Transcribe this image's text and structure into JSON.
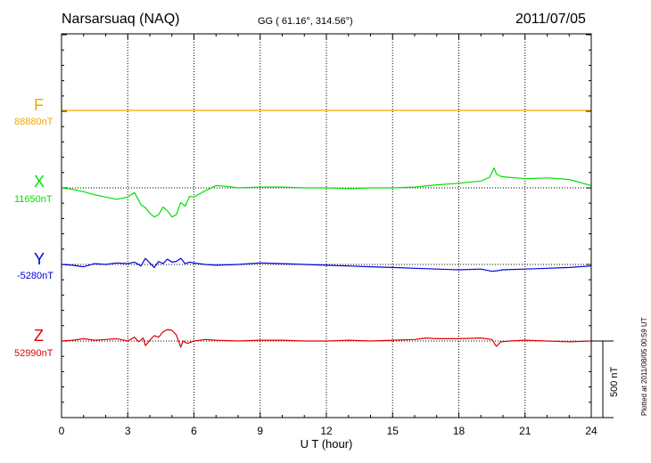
{
  "chart_data": {
    "type": "line",
    "title": "Narsarsuaq (NAQ)",
    "coordinates": "GG ( 61.16°, 314.56°)",
    "date": "2011/07/05",
    "xlabel": "U T (hour)",
    "xlim": [
      0,
      24
    ],
    "xticks": [
      0,
      3,
      6,
      9,
      12,
      15,
      18,
      21,
      24
    ],
    "grid": true,
    "scale_bar": {
      "label": "500 nT",
      "value_nT": 500
    },
    "footer_note": "Plotted at 2011/08/05 00:59 UT",
    "series": [
      {
        "name": "F",
        "baseline_label": "88880nT",
        "baseline_nT": 88880,
        "color": "#f0a800",
        "x": [
          0,
          24
        ],
        "y": [
          0,
          0
        ]
      },
      {
        "name": "X",
        "baseline_label": "11650nT",
        "baseline_nT": 11650,
        "color": "#00e000",
        "x": [
          0,
          0.5,
          1,
          1.5,
          2,
          2.5,
          3,
          3.3,
          3.6,
          3.8,
          4.0,
          4.2,
          4.4,
          4.6,
          4.8,
          5.0,
          5.2,
          5.4,
          5.6,
          5.8,
          6.0,
          6.5,
          7.0,
          7.5,
          8,
          9,
          10,
          11,
          12,
          13,
          14,
          15,
          16,
          17,
          18,
          19,
          19.4,
          19.6,
          19.7,
          19.9,
          20.2,
          21,
          22,
          23,
          24
        ],
        "y": [
          0,
          -10,
          -25,
          -45,
          -60,
          -75,
          -60,
          -30,
          -110,
          -130,
          -165,
          -190,
          -175,
          -125,
          -150,
          -190,
          -175,
          -95,
          -120,
          -55,
          -60,
          -20,
          15,
          10,
          0,
          5,
          5,
          0,
          0,
          -5,
          0,
          0,
          5,
          20,
          30,
          45,
          70,
          130,
          90,
          75,
          70,
          60,
          65,
          55,
          15
        ]
      },
      {
        "name": "Y",
        "baseline_label": "-5280nT",
        "baseline_nT": -5280,
        "color": "#0000e0",
        "x": [
          0,
          0.5,
          1,
          1.5,
          2,
          2.5,
          3,
          3.3,
          3.6,
          3.8,
          4.0,
          4.2,
          4.4,
          4.6,
          4.8,
          5.0,
          5.2,
          5.4,
          5.6,
          5.8,
          6.0,
          6.5,
          7.0,
          8,
          9,
          10,
          11,
          12,
          13,
          14,
          15,
          16,
          17,
          18,
          19,
          19.5,
          19.8,
          20,
          21,
          22,
          23,
          24
        ],
        "y": [
          0,
          -5,
          -15,
          5,
          0,
          10,
          5,
          15,
          -10,
          40,
          10,
          -20,
          20,
          5,
          35,
          15,
          20,
          40,
          5,
          15,
          10,
          0,
          -5,
          0,
          10,
          5,
          0,
          -5,
          -10,
          -15,
          -20,
          -25,
          -30,
          -35,
          -30,
          -45,
          -40,
          -35,
          -30,
          -25,
          -20,
          -10
        ]
      },
      {
        "name": "Z",
        "baseline_label": "52990nT",
        "baseline_nT": 52990,
        "color": "#e00000",
        "x": [
          0,
          0.5,
          1,
          1.5,
          2,
          2.5,
          3,
          3.3,
          3.5,
          3.7,
          3.8,
          4.0,
          4.2,
          4.4,
          4.6,
          4.8,
          5.0,
          5.2,
          5.4,
          5.5,
          5.7,
          6.0,
          6.5,
          7,
          8,
          9,
          10,
          11,
          12,
          13,
          14,
          15,
          16,
          16.5,
          17,
          18,
          19,
          19.5,
          19.7,
          19.9,
          20.3,
          21,
          22,
          23,
          24
        ],
        "y": [
          0,
          5,
          15,
          5,
          10,
          15,
          0,
          25,
          -5,
          20,
          -30,
          5,
          35,
          25,
          60,
          75,
          70,
          40,
          -40,
          0,
          -15,
          0,
          10,
          5,
          0,
          5,
          5,
          0,
          0,
          5,
          0,
          5,
          10,
          20,
          15,
          15,
          20,
          10,
          -35,
          -5,
          0,
          5,
          0,
          -5,
          0
        ]
      }
    ]
  }
}
